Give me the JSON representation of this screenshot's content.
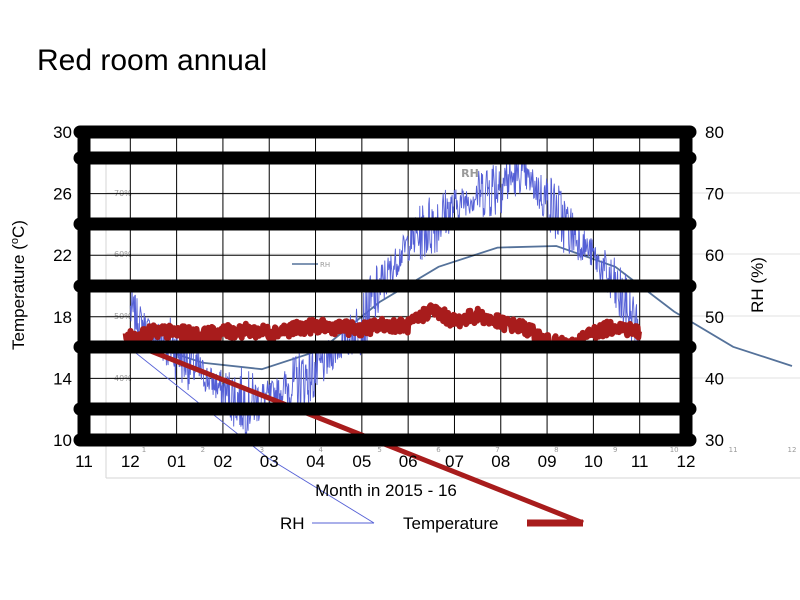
{
  "title": "Red room annual",
  "chart_data": {
    "type": "line",
    "title": "Red room annual",
    "xlabel": "Month in 2015 - 16",
    "ylabel": "Temperature (oC)",
    "ylabel_right": "RH (%)",
    "x_ticks": [
      "11",
      "12",
      "01",
      "02",
      "03",
      "04",
      "05",
      "06",
      "07",
      "08",
      "09",
      "10",
      "11",
      "12"
    ],
    "y_ticks": [
      10,
      14,
      18,
      22,
      26,
      30
    ],
    "y_right_ticks": [
      30,
      40,
      50,
      60,
      70,
      80
    ],
    "ylim": [
      10,
      30
    ],
    "ylim_right": [
      30,
      80
    ],
    "grid": true,
    "legend": "bottom-center",
    "series": [
      {
        "name": "RH",
        "axis": "right",
        "color": "#5560d6",
        "x": [
          1.0,
          1.5,
          2.0,
          2.5,
          3.0,
          3.5,
          4.0,
          4.5,
          5.0,
          5.5,
          6.0,
          6.5,
          7.0,
          7.5,
          8.0,
          8.5,
          9.0,
          9.5,
          10.0,
          10.5,
          11.0,
          11.5,
          12.0
        ],
        "values": [
          51,
          47,
          45,
          41,
          38,
          36,
          37,
          39,
          41,
          45,
          49,
          56,
          62,
          65,
          68,
          70,
          72,
          73,
          69,
          64,
          60,
          54,
          48
        ]
      },
      {
        "name": "Temperature",
        "axis": "left",
        "color": "#a81c1c",
        "x": [
          0.9,
          1.5,
          2.0,
          2.5,
          3.0,
          3.5,
          4.0,
          4.5,
          5.0,
          5.5,
          6.0,
          6.5,
          7.0,
          7.5,
          8.0,
          8.5,
          9.0,
          9.5,
          10.0,
          10.5,
          11.0,
          11.5,
          12.0
        ],
        "values": [
          16.6,
          17.0,
          17.0,
          16.8,
          17.0,
          17.1,
          17.0,
          17.2,
          17.4,
          17.3,
          17.2,
          17.5,
          17.4,
          18.5,
          17.7,
          18.1,
          17.6,
          17.3,
          16.4,
          16.1,
          17.0,
          17.4,
          17.0
        ]
      }
    ],
    "background_graph": {
      "label": "RH",
      "legend_label": "RH",
      "y_tick_labels": [
        "70%",
        "60%",
        "50%",
        "40%"
      ],
      "x_tick_labels": [
        "1",
        "2",
        "3",
        "4",
        "5",
        "6",
        "7",
        "8",
        "9",
        "10",
        "11",
        "12"
      ],
      "x": [
        1,
        2,
        3,
        4,
        5,
        6,
        7,
        8,
        9,
        10,
        11,
        12
      ],
      "values": [
        0.42,
        0.36,
        0.34,
        0.4,
        0.55,
        0.66,
        0.72,
        0.725,
        0.66,
        0.52,
        0.41,
        0.35
      ]
    }
  }
}
